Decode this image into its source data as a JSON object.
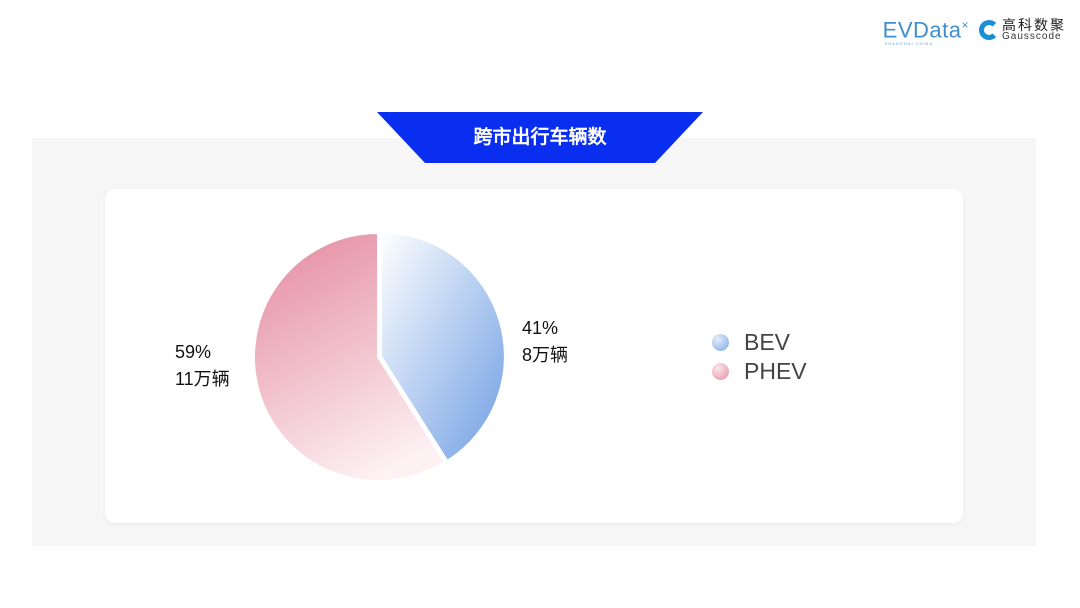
{
  "logos": {
    "evdata": "EVData",
    "evdata_sub": "SHANGHAI CHINA",
    "gauss_cn": "高科数聚",
    "gauss_en": "Gausscode"
  },
  "title": "跨市出行车辆数",
  "colors": {
    "banner": "#0a2ef0",
    "bev": "#7aa6e6",
    "phev": "#e58fa3"
  },
  "chart_data": {
    "type": "pie",
    "title": "跨市出行车辆数",
    "legend_position": "right",
    "slices": [
      {
        "name": "BEV",
        "percent": 41,
        "value_label": "8万辆",
        "pct_label": "41%"
      },
      {
        "name": "PHEV",
        "percent": 59,
        "value_label": "11万辆",
        "pct_label": "59%"
      }
    ]
  }
}
